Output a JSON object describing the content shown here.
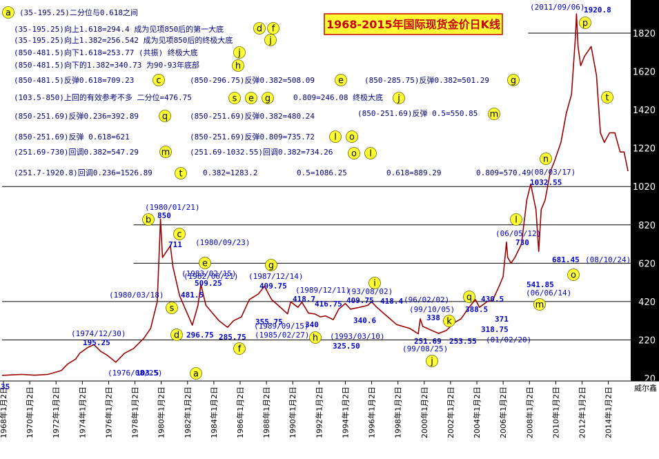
{
  "chart_data": {
    "type": "line",
    "title": "1968-2015年国际现货金价日K线",
    "credit": "威尔鑫",
    "y_ticks": [
      20,
      220,
      420,
      620,
      820,
      1020,
      1220,
      1420,
      1620,
      1820
    ],
    "ylim": [
      20,
      1920.8
    ],
    "x_ticks": [
      "1968年1月2日",
      "1970年1月2日",
      "1972年1月2日",
      "1974年1月2日",
      "1976年1月2日",
      "1978年1月2日",
      "1980年1月2日",
      "1982年1月2日",
      "1984年1月2日",
      "1986年1月2日",
      "1988年1月2日",
      "1990年1月2日",
      "1992年1月2日",
      "1994年1月2日",
      "1996年1月2日",
      "1998年1月2日",
      "2000年1月2日",
      "2002年1月2日",
      "2004年1月2日",
      "2006年1月2日",
      "2008年1月2日",
      "2010年1月2日",
      "2012年1月2日",
      "2014年1月2日"
    ],
    "xlim": [
      1968.0,
      2015.7
    ],
    "reference_levels": [
      {
        "value": 220,
        "x_start": 1968.0
      },
      {
        "value": 420,
        "x_start": 1968.0
      },
      {
        "value": 620,
        "x_start": 1978.0
      },
      {
        "value": 820,
        "x_start": 1978.0
      },
      {
        "value": 1020,
        "x_start": 1968.0
      },
      {
        "value": 1820,
        "x_start": 2008.0
      }
    ],
    "series": [
      {
        "x": [
          1968.0,
          1969.5,
          1970.5,
          1971.5,
          1972.5,
          1973.0,
          1973.6,
          1973.9,
          1974.5,
          1974.99,
          1975.5,
          1976.0,
          1976.65,
          1977.3,
          1978.0,
          1978.8,
          1979.3,
          1979.8,
          1980.05,
          1980.2,
          1980.8,
          1981.0,
          1981.5,
          1982.47,
          1982.9,
          1983.12,
          1983.5,
          1984.0,
          1984.5,
          1985.15,
          1985.6,
          1986.2,
          1986.8,
          1987.5,
          1987.95,
          1988.5,
          1989.0,
          1989.71,
          1989.95,
          1990.5,
          1990.8,
          1991.3,
          1991.8,
          1992.2,
          1992.6,
          1993.19,
          1993.6,
          1994.1,
          1994.5,
          1995.2,
          1995.8,
          1996.1,
          1996.5,
          1997.0,
          1997.5,
          1998.0,
          1998.5,
          1999.0,
          1999.65,
          1999.8,
          2000.0,
          2000.5,
          2001.2,
          2001.8,
          2002.4,
          2002.9,
          2003.5,
          2004.0,
          2004.3,
          2004.9,
          2005.3,
          2005.8,
          2006.1,
          2006.36,
          2006.45,
          2006.7,
          2007.0,
          2007.5,
          2007.9,
          2008.2,
          2008.6,
          2008.81,
          2009.0,
          2009.3,
          2009.7,
          2010.0,
          2010.5,
          2010.9,
          2011.3,
          2011.6,
          2011.68,
          2011.8,
          2012.0,
          2012.3,
          2012.8,
          2013.2,
          2013.5,
          2013.8,
          2014.2,
          2014.6,
          2015.0,
          2015.3,
          2015.6
        ],
        "values": [
          35,
          40,
          36,
          40,
          60,
          95,
          120,
          150,
          180,
          195.25,
          160,
          140,
          103.5,
          150,
          175,
          230,
          280,
          420,
          850,
          650,
          711,
          600,
          450,
          296.75,
          400,
          509.25,
          400,
          360,
          320,
          285.75,
          320,
          340,
          430,
          460,
          499.75,
          430,
          400,
          355.75,
          418.7,
          390,
          416.75,
          360,
          355,
          340,
          345,
          325.5,
          380,
          409.75,
          380,
          390,
          400,
          418.4,
          390,
          360,
          330,
          300,
          290,
          280,
          251.69,
          330,
          290,
          275,
          253.55,
          270,
          310,
          330,
          388.5,
          430.5,
          390,
          420,
          425,
          500,
          550,
          730,
          650,
          620,
          650,
          720,
          950,
          1032.55,
          900,
          681.45,
          900,
          950,
          1100,
          1150,
          1250,
          1400,
          1500,
          1800,
          1920.8,
          1750,
          1650,
          1700,
          1750,
          1600,
          1300,
          1250,
          1300,
          1300,
          1200,
          1200,
          1100
        ]
      }
    ],
    "peak_labels": [
      {
        "code": "a",
        "circle_x": 1975.7,
        "circle_y": 30
      },
      {
        "code": "b",
        "circle_x": 1978.2,
        "circle_y": 875,
        "date": "(1980/01/21)",
        "value": "850"
      },
      {
        "code": "c",
        "circle_x": 1981.0,
        "circle_y": 780,
        "date": "(1980/09/23)",
        "value": "711"
      },
      {
        "code": "d",
        "circle_x": 1980.5,
        "circle_y": 245,
        "date": "(1982/06/21)",
        "value": "296.75"
      },
      {
        "code": "e",
        "circle_x": 1983.3,
        "circle_y": 600
      },
      {
        "code": "f",
        "circle_x": 1985.5,
        "circle_y": 185
      },
      {
        "code": "g",
        "circle_x": 1988.1,
        "circle_y": 600
      },
      {
        "code": "h",
        "circle_x": 1991.5,
        "circle_y": 235
      },
      {
        "code": "i",
        "circle_x": 1995.0,
        "circle_y": 493
      },
      {
        "code": "j",
        "circle_x": 1999.7,
        "circle_y": 132
      },
      {
        "code": "k",
        "circle_x": 2000.9,
        "circle_y": 285
      },
      {
        "code": "l",
        "circle_x": 2006.0,
        "circle_y": 860
      },
      {
        "code": "m",
        "circle_x": 2006.85,
        "circle_y": 405
      },
      {
        "code": "n",
        "circle_x": 2007.9,
        "circle_y": 1195
      },
      {
        "code": "o",
        "circle_x": 2009.6,
        "circle_y": 525
      },
      {
        "code": "p",
        "circle_x": 2010.9,
        "circle_y": 1838
      },
      {
        "code": "q",
        "circle_x": 2002.6,
        "circle_y": 435
      },
      {
        "code": "t",
        "circle_x": 2012.1,
        "circle_y": 1545
      },
      {
        "code": "s",
        "circle_x": 1980.5,
        "circle_y": 400
      }
    ],
    "point_labels": [
      {
        "date": "(1980/01/21)",
        "value": "850"
      },
      {
        "date": "(1980/09/23)",
        "value": "711"
      },
      {
        "date": "(1974/12/30)",
        "value": "195.25"
      },
      {
        "date": "(1976/08/25)",
        "value": "103.5"
      },
      {
        "date": "(1980/03/18)",
        "value": "481.5"
      },
      {
        "date": "(1982/06/21)",
        "value": "296.75"
      },
      {
        "date": "(1983/02/15)",
        "value": "509.25"
      },
      {
        "date": "(1985/02/27)",
        "value": "285.75"
      },
      {
        "date": "(1987/12/14)",
        "value": "499.75"
      },
      {
        "date": "(1989/09/15)",
        "value": "355.75"
      },
      {
        "date": "(1989/12/11)",
        "value": "418.7"
      },
      {
        "date": "",
        "value": "340"
      },
      {
        "date": "",
        "value": "416.75"
      },
      {
        "date": "(1993/03/10)",
        "value": "325.50"
      },
      {
        "date": "",
        "value": "409.75"
      },
      {
        "date": "(93/08/02)",
        "value": ""
      },
      {
        "date": "",
        "value": "340.6"
      },
      {
        "date": "",
        "value": "418.4"
      },
      {
        "date": "(96/02/02)",
        "value": ""
      },
      {
        "date": "(99/10/05)",
        "value": "338"
      },
      {
        "date": "(99/08/25)",
        "value": "251.69"
      },
      {
        "date": "(01/02/20)",
        "value": "253.55"
      },
      {
        "date": "",
        "value": "388.5"
      },
      {
        "date": "",
        "value": "430.5"
      },
      {
        "date": "",
        "value": "318.75"
      },
      {
        "date": "",
        "value": "371"
      },
      {
        "date": "(06/05/12)",
        "value": "730"
      },
      {
        "date": "(06/06/14)",
        "value": "541.85"
      },
      {
        "date": "(08/03/17)",
        "value": "1032.55"
      },
      {
        "date": "(08/10/24)",
        "value": "681.45"
      },
      {
        "date": "(2011/09/06)",
        "value": "1920.8"
      },
      {
        "date": "",
        "value": "35"
      }
    ]
  },
  "notes": [
    {
      "text": "(35-195.25)二分位与0.618之间",
      "circles": [
        "a"
      ]
    },
    {
      "text": "(35-195.25)向上1.618=294.4   成为见项850后的第一大底",
      "circles": [
        "d",
        "f"
      ]
    },
    {
      "text": "(35-195.25)向上1.382=256.542   成为见项850后的终极大底",
      "circles": [
        "j"
      ]
    },
    {
      "text": "(850-481.5)向下1.618=253.77  (共振) 终极大底",
      "circles": [
        "j"
      ]
    },
    {
      "text": "(850-481.5)向下的1.382=340.73   为90-93年底部",
      "circles": [
        "h"
      ]
    },
    {
      "text": "(850-481.5)反弹0.618=709.23",
      "circles": [
        "c"
      ]
    },
    {
      "text": "(850-296.75)反弹0.382=508.09",
      "circles": [
        "e"
      ]
    },
    {
      "text": "(850-285.75)反弹0.382=501.29",
      "circles": [
        "g"
      ]
    },
    {
      "text": "(103.5-850)上回的有效参考不多  二分位=476.75",
      "circles": [
        "s",
        "e",
        "g"
      ]
    },
    {
      "text": "0.809=246.08   终极大底",
      "circles": [
        "j"
      ]
    },
    {
      "text": "(850-251.69)反弹0.236=392.89",
      "circles": [
        "q"
      ]
    },
    {
      "text": "(850-251.69)反弹0.382=480.24",
      "circles": []
    },
    {
      "text": "(850-251.69)反弹 0.5=550.85",
      "circles": [
        "m"
      ]
    },
    {
      "text": "(850-251.69)反弹 0.618=621",
      "circles": []
    },
    {
      "text": "(850-251.69)反弹0.809=735.72",
      "circles": [
        "l",
        "o"
      ]
    },
    {
      "text": "(251.69-730)回调0.382=547.29",
      "circles": [
        "m"
      ]
    },
    {
      "text": "(251.69-1032.55)回调0.382=734.26",
      "circles": [
        "o",
        "l"
      ]
    },
    {
      "text": "(251.7-1920.8)回调0.236=1526.89",
      "circles": [
        "t"
      ]
    },
    {
      "text": "0.382=1283.2",
      "circles": []
    },
    {
      "text": "0.5=1086.25",
      "circles": []
    },
    {
      "text": "0.618=889.29",
      "circles": []
    },
    {
      "text": "0.809=570.49",
      "circles": []
    }
  ]
}
